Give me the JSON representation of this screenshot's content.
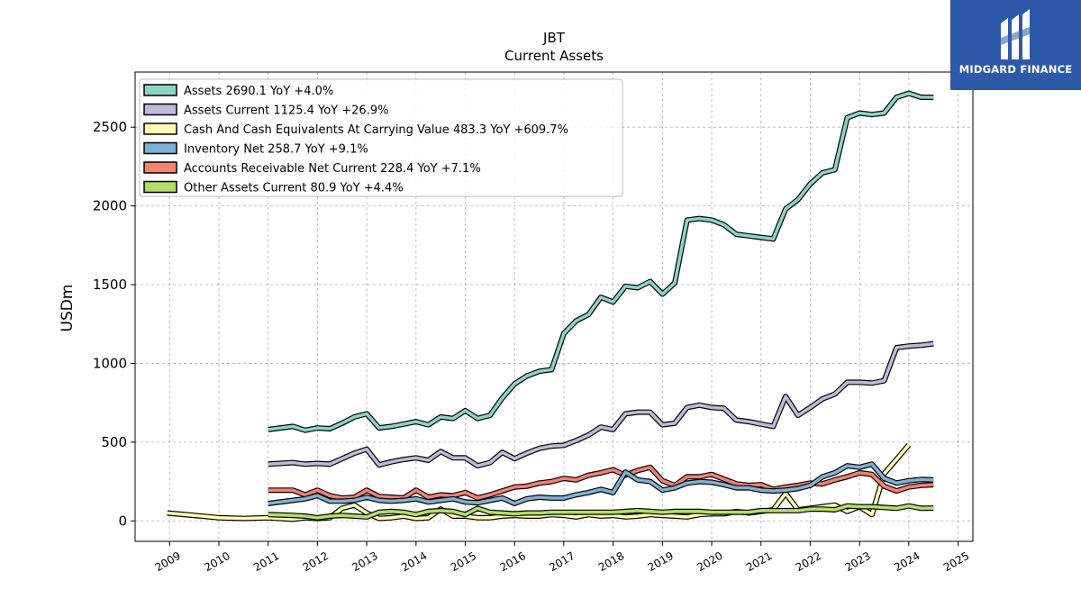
{
  "brand": {
    "name": "MIDGARD FINANCE",
    "bg_color": "#2d5aa8"
  },
  "chart_data": {
    "type": "line",
    "title": "JBT",
    "subtitle": "Current  Assets",
    "xlabel": "",
    "ylabel": "USDm",
    "xlim": [
      2008.3,
      2025.3
    ],
    "ylim": [
      -130,
      2850
    ],
    "x_ticks": [
      "2009",
      "2010",
      "2011",
      "2012",
      "2013",
      "2014",
      "2015",
      "2016",
      "2017",
      "2018",
      "2019",
      "2020",
      "2021",
      "2022",
      "2023",
      "2024",
      "2025"
    ],
    "y_ticks": [
      0,
      500,
      1000,
      1500,
      2000,
      2500
    ],
    "grid": true,
    "legend_position": "top-left",
    "series": [
      {
        "name": "Assets",
        "legend": "Assets  2690.1 YoY +4.0%",
        "color": "#8dd3c7",
        "x": [
          2011.0,
          2011.5,
          2011.75,
          2012.0,
          2012.25,
          2012.5,
          2012.75,
          2013.0,
          2013.25,
          2013.5,
          2013.75,
          2014.0,
          2014.25,
          2014.5,
          2014.75,
          2015.0,
          2015.25,
          2015.5,
          2015.75,
          2016.0,
          2016.25,
          2016.5,
          2016.75,
          2017.0,
          2017.25,
          2017.5,
          2017.75,
          2018.0,
          2018.25,
          2018.5,
          2018.75,
          2019.0,
          2019.25,
          2019.5,
          2019.75,
          2020.0,
          2020.25,
          2020.5,
          2020.75,
          2021.0,
          2021.25,
          2021.5,
          2021.75,
          2022.0,
          2022.25,
          2022.5,
          2022.75,
          2023.0,
          2023.25,
          2023.5,
          2023.75,
          2024.0,
          2024.25,
          2024.5
        ],
        "values": [
          580,
          600,
          575,
          590,
          585,
          620,
          660,
          680,
          590,
          600,
          615,
          630,
          610,
          660,
          650,
          700,
          650,
          670,
          780,
          870,
          920,
          950,
          960,
          1190,
          1270,
          1310,
          1420,
          1390,
          1490,
          1480,
          1520,
          1440,
          1510,
          1910,
          1920,
          1910,
          1880,
          1820,
          1810,
          1800,
          1790,
          1980,
          2040,
          2140,
          2210,
          2230,
          2560,
          2590,
          2580,
          2590,
          2690,
          2715,
          2690,
          2690
        ]
      },
      {
        "name": "Assets Current",
        "legend": "Assets Current  1125.4 YoY +26.9%",
        "color": "#bebada",
        "x": [
          2011.0,
          2011.5,
          2011.75,
          2012.0,
          2012.25,
          2012.5,
          2012.75,
          2013.0,
          2013.25,
          2013.5,
          2013.75,
          2014.0,
          2014.25,
          2014.5,
          2014.75,
          2015.0,
          2015.25,
          2015.5,
          2015.75,
          2016.0,
          2016.25,
          2016.5,
          2016.75,
          2017.0,
          2017.25,
          2017.5,
          2017.75,
          2018.0,
          2018.25,
          2018.5,
          2018.75,
          2019.0,
          2019.25,
          2019.5,
          2019.75,
          2020.0,
          2020.25,
          2020.5,
          2020.75,
          2021.0,
          2021.25,
          2021.5,
          2021.75,
          2022.0,
          2022.25,
          2022.5,
          2022.75,
          2023.0,
          2023.25,
          2023.5,
          2023.75,
          2024.0,
          2024.25,
          2024.5
        ],
        "values": [
          360,
          370,
          360,
          365,
          360,
          395,
          430,
          455,
          355,
          375,
          390,
          400,
          385,
          440,
          400,
          400,
          350,
          370,
          435,
          395,
          430,
          460,
          475,
          480,
          510,
          545,
          595,
          580,
          680,
          690,
          690,
          610,
          620,
          720,
          735,
          720,
          715,
          640,
          630,
          615,
          600,
          790,
          670,
          720,
          775,
          805,
          880,
          880,
          875,
          890,
          1100,
          1110,
          1115,
          1125
        ]
      },
      {
        "name": "Cash And Cash Equivalents At Carrying Value",
        "legend": "Cash And Cash Equivalents At Carrying Value  483.3 YoY +609.7%",
        "color": "#ffffb3",
        "x": [
          2008.95,
          2009.5,
          2010.0,
          2010.5,
          2011.0,
          2011.5,
          2011.75,
          2012.0,
          2012.25,
          2012.5,
          2012.75,
          2013.0,
          2013.25,
          2013.5,
          2013.75,
          2014.0,
          2014.25,
          2014.5,
          2014.75,
          2015.0,
          2015.25,
          2015.5,
          2015.75,
          2016.0,
          2016.25,
          2016.5,
          2016.75,
          2017.0,
          2017.25,
          2017.5,
          2017.75,
          2018.0,
          2018.25,
          2018.5,
          2018.75,
          2019.0,
          2019.25,
          2019.5,
          2019.75,
          2020.0,
          2020.25,
          2020.5,
          2020.75,
          2021.0,
          2021.25,
          2021.5,
          2021.75,
          2022.0,
          2022.25,
          2022.5,
          2022.75,
          2023.0,
          2023.25,
          2023.5,
          2023.75,
          2024.0
        ],
        "values": [
          50,
          35,
          20,
          15,
          20,
          10,
          20,
          15,
          20,
          80,
          100,
          50,
          15,
          20,
          30,
          15,
          20,
          75,
          30,
          30,
          20,
          20,
          30,
          35,
          30,
          30,
          40,
          35,
          25,
          40,
          30,
          35,
          25,
          30,
          40,
          35,
          30,
          25,
          40,
          45,
          45,
          60,
          50,
          60,
          70,
          175,
          70,
          80,
          90,
          100,
          60,
          90,
          40,
          300,
          390,
          483
        ]
      },
      {
        "name": "Inventory Net",
        "legend": "Inventory Net  258.7 YoY +9.1%",
        "color": "#80b1d3",
        "x": [
          2011.0,
          2011.5,
          2011.75,
          2012.0,
          2012.25,
          2012.5,
          2012.75,
          2013.0,
          2013.25,
          2013.5,
          2013.75,
          2014.0,
          2014.25,
          2014.5,
          2014.75,
          2015.0,
          2015.25,
          2015.5,
          2015.75,
          2016.0,
          2016.25,
          2016.5,
          2016.75,
          2017.0,
          2017.25,
          2017.5,
          2017.75,
          2018.0,
          2018.25,
          2018.5,
          2018.75,
          2019.0,
          2019.25,
          2019.5,
          2019.75,
          2020.0,
          2020.25,
          2020.5,
          2020.75,
          2021.0,
          2021.25,
          2021.5,
          2021.75,
          2022.0,
          2022.25,
          2022.5,
          2022.75,
          2023.0,
          2023.25,
          2023.5,
          2023.75,
          2024.0,
          2024.25,
          2024.5
        ],
        "values": [
          110,
          130,
          140,
          160,
          125,
          125,
          130,
          150,
          130,
          125,
          130,
          140,
          120,
          130,
          140,
          120,
          115,
          130,
          145,
          110,
          140,
          150,
          145,
          145,
          165,
          180,
          200,
          180,
          310,
          260,
          250,
          195,
          210,
          240,
          250,
          245,
          230,
          210,
          210,
          195,
          190,
          195,
          205,
          225,
          280,
          305,
          350,
          340,
          360,
          270,
          240,
          255,
          263,
          260
        ]
      },
      {
        "name": "Accounts Receivable Net Current",
        "legend": "Accounts Receivable Net Current  228.4 YoY +7.1%",
        "color": "#fb8072",
        "x": [
          2011.0,
          2011.5,
          2011.75,
          2012.0,
          2012.25,
          2012.5,
          2012.75,
          2013.0,
          2013.25,
          2013.5,
          2013.75,
          2014.0,
          2014.25,
          2014.5,
          2014.75,
          2015.0,
          2015.25,
          2015.5,
          2015.75,
          2016.0,
          2016.25,
          2016.5,
          2016.75,
          2017.0,
          2017.25,
          2017.5,
          2017.75,
          2018.0,
          2018.25,
          2018.5,
          2018.75,
          2019.0,
          2019.25,
          2019.5,
          2019.75,
          2020.0,
          2020.25,
          2020.5,
          2020.75,
          2021.0,
          2021.25,
          2021.5,
          2021.75,
          2022.0,
          2022.25,
          2022.5,
          2022.75,
          2023.0,
          2023.25,
          2023.5,
          2023.75,
          2024.0,
          2024.25,
          2024.5
        ],
        "values": [
          195,
          195,
          165,
          195,
          160,
          145,
          150,
          195,
          155,
          150,
          145,
          195,
          150,
          165,
          160,
          180,
          145,
          165,
          190,
          215,
          220,
          240,
          250,
          270,
          260,
          290,
          305,
          325,
          290,
          320,
          340,
          255,
          225,
          280,
          280,
          295,
          265,
          235,
          225,
          230,
          200,
          215,
          225,
          240,
          235,
          260,
          280,
          305,
          295,
          220,
          190,
          215,
          225,
          230
        ]
      },
      {
        "name": "Other Assets Current",
        "legend": "Other Assets Current  80.9 YoY +4.4%",
        "color": "#b3de69",
        "x": [
          2011.0,
          2011.5,
          2011.75,
          2012.0,
          2012.25,
          2012.5,
          2012.75,
          2013.0,
          2013.25,
          2013.5,
          2013.75,
          2014.0,
          2014.25,
          2014.5,
          2014.75,
          2015.0,
          2015.25,
          2015.5,
          2015.75,
          2016.0,
          2016.25,
          2016.5,
          2016.75,
          2017.0,
          2017.25,
          2017.5,
          2017.75,
          2018.0,
          2018.25,
          2018.5,
          2018.75,
          2019.0,
          2019.25,
          2019.5,
          2019.75,
          2020.0,
          2020.25,
          2020.5,
          2020.75,
          2021.0,
          2021.25,
          2021.5,
          2021.75,
          2022.0,
          2022.25,
          2022.5,
          2022.75,
          2023.0,
          2023.25,
          2023.5,
          2023.75,
          2024.0,
          2024.25,
          2024.5
        ],
        "values": [
          40,
          35,
          30,
          20,
          30,
          35,
          30,
          25,
          55,
          60,
          55,
          40,
          60,
          65,
          60,
          40,
          80,
          55,
          50,
          45,
          50,
          50,
          55,
          55,
          55,
          55,
          55,
          55,
          60,
          65,
          60,
          55,
          60,
          60,
          60,
          55,
          55,
          55,
          55,
          65,
          65,
          65,
          65,
          75,
          75,
          70,
          95,
          90,
          90,
          85,
          80,
          95,
          80,
          81
        ]
      }
    ]
  }
}
